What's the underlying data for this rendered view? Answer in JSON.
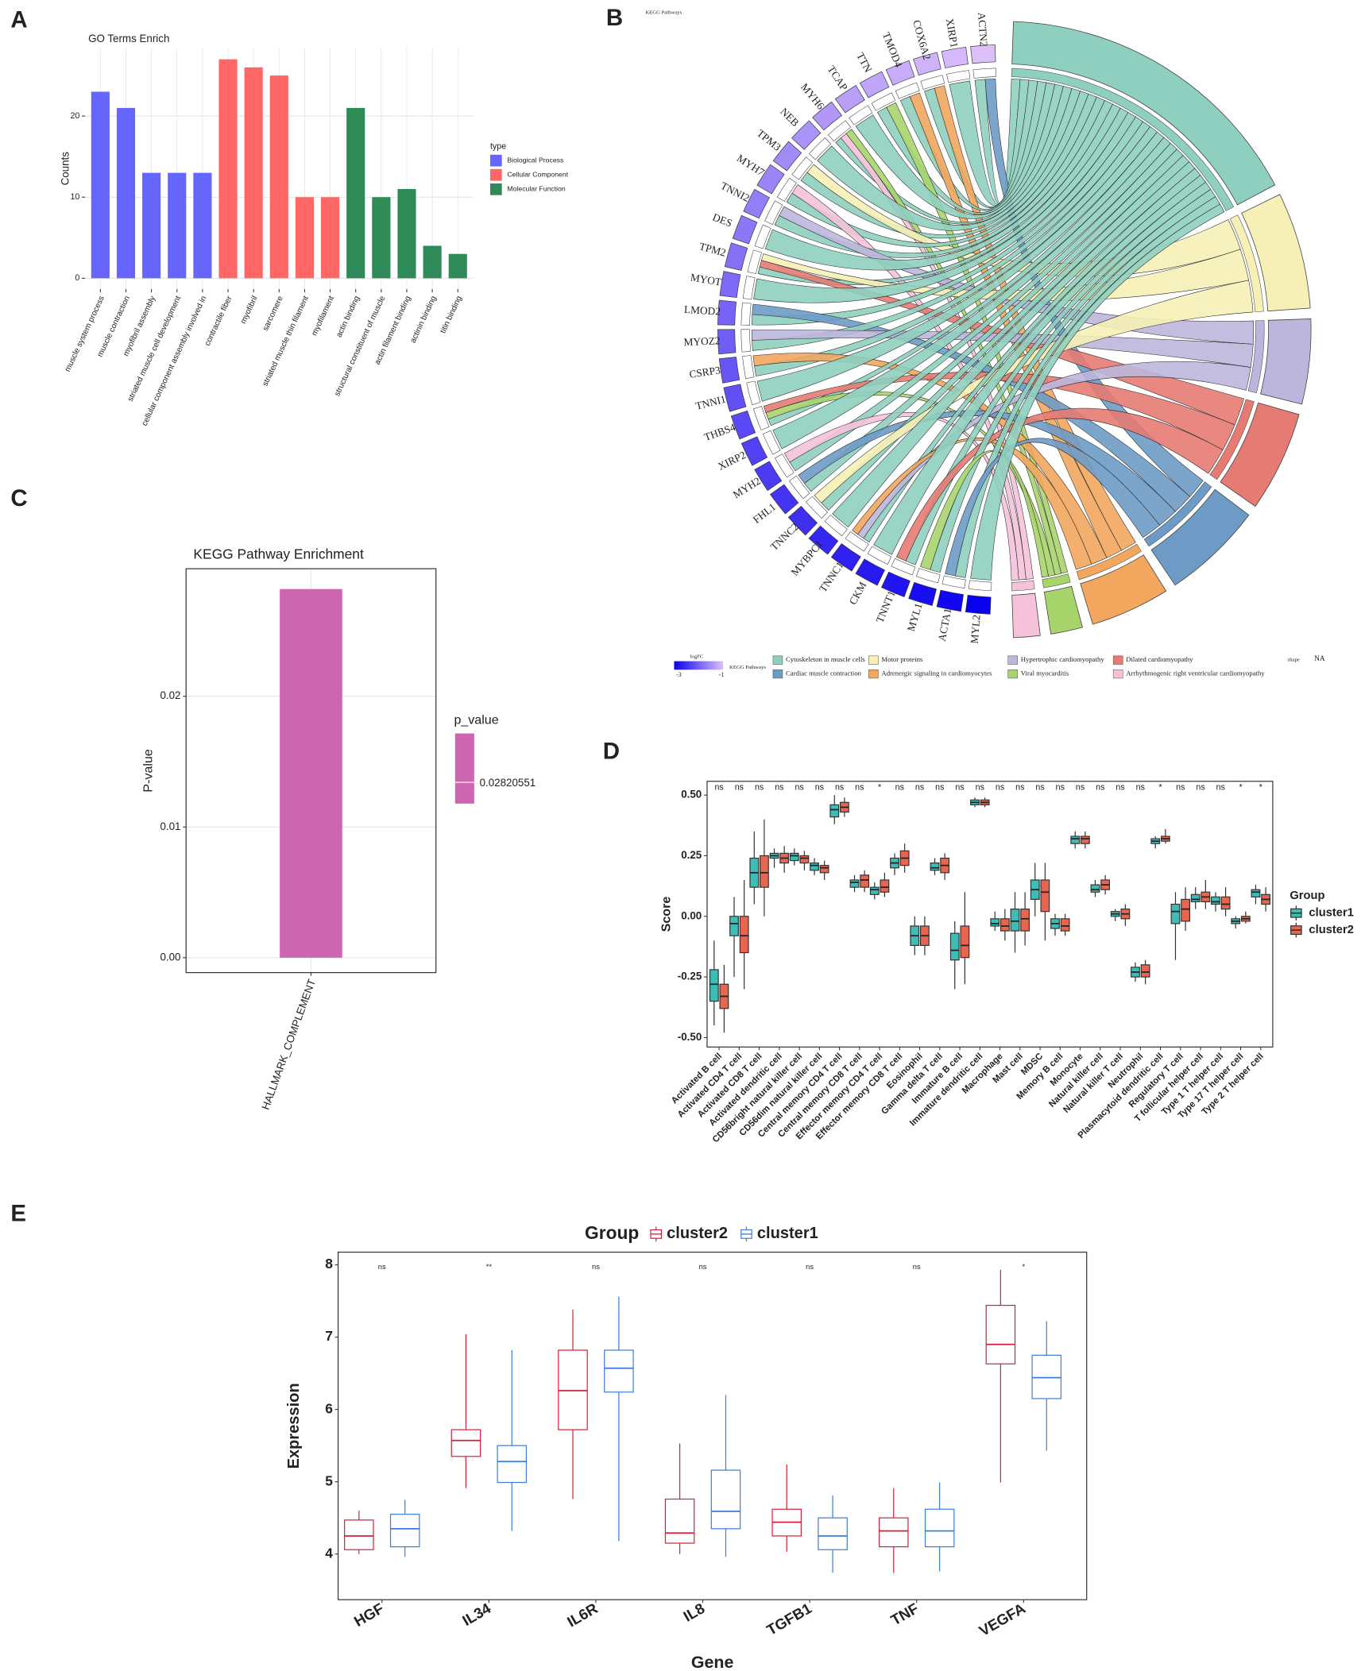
{
  "chart_data": [
    {
      "type": "bar",
      "panel": "A",
      "title": "GO Terms Enrich",
      "ylabel": "Counts",
      "legend_title": "type",
      "categories": [
        "muscle system process",
        "muscle contraction",
        "myofibril assembly",
        "striated muscle cell development",
        "cellular component assembly involved in",
        "contractile fiber",
        "myofibril",
        "sarcomere",
        "striated muscle thin filament",
        "myofilament",
        "actin binding",
        "structural constituent of muscle",
        "actin filament binding",
        "actinin binding",
        "titin binding"
      ],
      "series": [
        {
          "name": "Biological Process",
          "color": "#6666ff",
          "values": [
            23,
            21,
            13,
            13,
            13,
            null,
            null,
            null,
            null,
            null,
            null,
            null,
            null,
            null,
            null
          ]
        },
        {
          "name": "Cellular Component",
          "color": "#ff6666",
          "values": [
            null,
            null,
            null,
            null,
            null,
            27,
            26,
            25,
            10,
            10,
            null,
            null,
            null,
            null,
            null
          ]
        },
        {
          "name": "Molecular Function",
          "color": "#2e8b57",
          "values": [
            null,
            null,
            null,
            null,
            null,
            null,
            null,
            null,
            null,
            null,
            21,
            10,
            11,
            4,
            3
          ]
        }
      ],
      "ylim": [
        -1.35,
        28.4
      ],
      "yticks": [
        0,
        10,
        20
      ],
      "grid": true
    },
    {
      "type": "chord",
      "panel": "B",
      "title": "KEGG Pathways",
      "genes": [
        "ACTN2",
        "XIRP1",
        "COX6A2",
        "TMOD4",
        "TTN",
        "TCAP",
        "MYH6",
        "NEB",
        "TPM3",
        "MYH7",
        "TNNI2",
        "DES",
        "TPM2",
        "MYOT",
        "LMOD2",
        "MYOZ2",
        "CSRP3",
        "TNNI1",
        "THBS4",
        "XIRP2",
        "MYH2",
        "FHL1",
        "TNNC2",
        "MYBPC1",
        "TNNC1",
        "CKM",
        "TNNT1",
        "MYL1",
        "ACTA1",
        "MYL2"
      ],
      "logfc_label": "logFC",
      "logfc_ticks": [
        -3,
        -1
      ],
      "logfc_colors": [
        "#0a00f0",
        "#dcc0fa"
      ],
      "pathways_label": "KEGG Pathways",
      "pathways": [
        {
          "name": "Cytoskeleton in muscle cells",
          "color": "#8fcfbf"
        },
        {
          "name": "Cardiac muscle contraction",
          "color": "#6e9bc6"
        },
        {
          "name": "Motor proteins",
          "color": "#f6f0b6"
        },
        {
          "name": "Adrenergic signaling in cardiomyocytes",
          "color": "#f2a65e"
        },
        {
          "name": "Hypertrophic cardiomyopathy",
          "color": "#bcb6dc"
        },
        {
          "name": "Viral myocarditis",
          "color": "#a8d46c"
        },
        {
          "name": "Dilated cardiomyopathy",
          "color": "#e57b73"
        },
        {
          "name": "Arrhythmogenic right ventricular cardiomyopathy",
          "color": "#f5c2d9"
        }
      ],
      "shape_label": "shape",
      "shape_value": "NA"
    },
    {
      "type": "bar",
      "panel": "C",
      "title": "KEGG Pathway Enrichment",
      "ylabel": "P-value",
      "legend_title": "p_value",
      "categories": [
        "HALLMARK_COMPLEMENT"
      ],
      "values": [
        0.02820551
      ],
      "color": "#cc66b0",
      "ylim": [
        -0.00114,
        0.02976
      ],
      "yticks": [
        {
          "value": 0,
          "label": "0.00"
        },
        0.01,
        0.02
      ],
      "grid": true
    },
    {
      "type": "box",
      "panel": "D",
      "ylabel": "Score",
      "legend_title": "Group",
      "categories": [
        "Activated B cell",
        "Activated CD4 T cell",
        "Activated CD8 T cell",
        "Activated dendritic cell",
        "CD56bright natural killer cell",
        "CD56dim natural killer cell",
        "Central memory CD4 T cell",
        "Central memory CD8 T cell",
        "Effector memory CD4 T cell",
        "Effector memory CD8 T cell",
        "Eosinophil",
        "Gamma delta T cell",
        "Immature  B cell",
        "Immature dendritic cell",
        "Macrophage",
        "Mast cell",
        "MDSC",
        "Memory B cell",
        "Monocyte",
        "Natural killer cell",
        "Natural killer T cell",
        "Neutrophil",
        "Plasmacytoid dendritic cell",
        "Regulatory T cell",
        "T follicular helper cell",
        "Type 1 T helper cell",
        "Type 17 T helper cell",
        "Type 2 T helper cell"
      ],
      "annotations": [
        "ns",
        "ns",
        "ns",
        "ns",
        "ns",
        "ns",
        "ns",
        "ns",
        "*",
        "ns",
        "ns",
        "ns",
        "ns",
        "ns",
        "ns",
        "ns",
        "ns",
        "ns",
        "ns",
        "ns",
        "ns",
        "ns",
        "*",
        "ns",
        "ns",
        "ns",
        "*",
        "*"
      ],
      "series": [
        {
          "name": "cluster1",
          "color": "#3ebdb6",
          "min": [
            -0.45,
            -0.25,
            0.05,
            0.2,
            0.21,
            0.17,
            0.38,
            0.1,
            0.07,
            0.17,
            -0.16,
            0.17,
            -0.3,
            0.45,
            -0.06,
            -0.15,
            0.0,
            -0.08,
            0.28,
            0.08,
            -0.02,
            -0.27,
            0.28,
            -0.18,
            0.03,
            0.02,
            -0.05,
            0.05
          ],
          "q1": [
            -0.35,
            -0.08,
            0.12,
            0.24,
            0.23,
            0.19,
            0.41,
            0.12,
            0.09,
            0.2,
            -0.12,
            0.19,
            -0.18,
            0.46,
            -0.04,
            -0.06,
            0.07,
            -0.05,
            0.3,
            0.1,
            0.0,
            -0.25,
            0.3,
            -0.03,
            0.06,
            0.05,
            -0.03,
            0.08
          ],
          "median": [
            -0.28,
            -0.03,
            0.18,
            0.25,
            0.25,
            0.21,
            0.44,
            0.14,
            0.11,
            0.22,
            -0.08,
            0.2,
            -0.14,
            0.47,
            -0.03,
            -0.02,
            0.11,
            -0.03,
            0.32,
            0.11,
            0.01,
            -0.23,
            0.31,
            0.02,
            0.07,
            0.06,
            -0.02,
            0.1
          ],
          "q3": [
            -0.22,
            0.0,
            0.24,
            0.26,
            0.26,
            0.22,
            0.46,
            0.15,
            0.12,
            0.24,
            -0.04,
            0.22,
            -0.07,
            0.48,
            -0.01,
            0.03,
            0.15,
            -0.01,
            0.33,
            0.13,
            0.02,
            -0.21,
            0.32,
            0.05,
            0.09,
            0.08,
            -0.01,
            0.11
          ],
          "max": [
            -0.1,
            0.08,
            0.35,
            0.28,
            0.28,
            0.24,
            0.5,
            0.17,
            0.14,
            0.26,
            0.0,
            0.24,
            -0.02,
            0.49,
            0.02,
            0.1,
            0.22,
            0.01,
            0.35,
            0.15,
            0.03,
            -0.19,
            0.33,
            0.1,
            0.12,
            0.1,
            0.0,
            0.13
          ]
        },
        {
          "name": "cluster2",
          "color": "#e8664f",
          "min": [
            -0.48,
            -0.3,
            0.0,
            0.18,
            0.19,
            0.15,
            0.41,
            0.1,
            0.08,
            0.18,
            -0.16,
            0.15,
            -0.28,
            0.45,
            -0.1,
            -0.12,
            -0.1,
            -0.08,
            0.28,
            0.09,
            -0.04,
            -0.28,
            0.3,
            -0.06,
            0.03,
            0.0,
            -0.03,
            0.02
          ],
          "q1": [
            -0.38,
            -0.15,
            0.12,
            0.22,
            0.22,
            0.18,
            0.43,
            0.12,
            0.1,
            0.21,
            -0.12,
            0.18,
            -0.17,
            0.46,
            -0.06,
            -0.06,
            0.02,
            -0.06,
            0.3,
            0.11,
            -0.01,
            -0.25,
            0.31,
            -0.02,
            0.06,
            0.03,
            -0.02,
            0.05
          ],
          "median": [
            -0.33,
            -0.08,
            0.18,
            0.24,
            0.24,
            0.2,
            0.45,
            0.15,
            0.12,
            0.24,
            -0.08,
            0.21,
            -0.12,
            0.47,
            -0.04,
            -0.01,
            0.1,
            -0.04,
            0.32,
            0.13,
            0.01,
            -0.23,
            0.32,
            0.03,
            0.08,
            0.05,
            -0.01,
            0.07
          ],
          "q3": [
            -0.28,
            0.0,
            0.25,
            0.26,
            0.25,
            0.21,
            0.47,
            0.17,
            0.15,
            0.27,
            -0.04,
            0.24,
            -0.04,
            0.48,
            -0.01,
            0.03,
            0.15,
            -0.01,
            0.33,
            0.15,
            0.03,
            -0.2,
            0.33,
            0.07,
            0.1,
            0.08,
            0.0,
            0.09
          ],
          "max": [
            -0.2,
            0.15,
            0.4,
            0.29,
            0.27,
            0.23,
            0.49,
            0.19,
            0.18,
            0.3,
            0.0,
            0.26,
            0.1,
            0.49,
            0.03,
            0.1,
            0.22,
            0.01,
            0.35,
            0.17,
            0.05,
            -0.18,
            0.36,
            0.12,
            0.15,
            0.12,
            0.02,
            0.12
          ]
        }
      ],
      "ylim": [
        -0.539,
        0.557
      ],
      "yticks": [
        {
          "value": -0.5,
          "label": "-0.50"
        },
        -0.25,
        {
          "value": 0,
          "label": "0.00"
        },
        0.25,
        {
          "value": 0.5,
          "label": "0.50"
        }
      ]
    },
    {
      "type": "box",
      "panel": "E",
      "xlabel": "Gene",
      "ylabel": "Expression",
      "legend_title": "Group",
      "categories": [
        "HGF",
        "IL34",
        "IL6R",
        "IL8",
        "TGFB1",
        "TNF",
        "VEGFA"
      ],
      "annotations": [
        "ns",
        "**",
        "ns",
        "ns",
        "ns",
        "ns",
        "*"
      ],
      "series": [
        {
          "name": "cluster2",
          "color": "#d6203a",
          "min": [
            4.0,
            4.91,
            4.76,
            4.0,
            4.03,
            3.74,
            4.99
          ],
          "q1": [
            4.06,
            5.35,
            5.72,
            4.15,
            4.25,
            4.1,
            6.63
          ],
          "median": [
            4.25,
            5.57,
            6.26,
            4.29,
            4.44,
            4.32,
            6.9
          ],
          "q3": [
            4.47,
            5.72,
            6.82,
            4.76,
            4.62,
            4.5,
            7.44
          ],
          "max": [
            4.6,
            7.04,
            7.38,
            5.53,
            5.24,
            4.91,
            7.93
          ]
        },
        {
          "name": "cluster1",
          "color": "#3b7dd8",
          "min": [
            3.96,
            4.32,
            4.18,
            3.96,
            3.74,
            3.76,
            5.43
          ],
          "q1": [
            4.1,
            4.99,
            6.24,
            4.35,
            4.06,
            4.1,
            6.15
          ],
          "median": [
            4.35,
            5.28,
            6.57,
            4.59,
            4.25,
            4.32,
            6.44
          ],
          "q3": [
            4.55,
            5.5,
            6.82,
            5.16,
            4.5,
            4.62,
            6.75
          ],
          "max": [
            4.75,
            6.82,
            7.56,
            6.2,
            4.81,
            4.99,
            7.22
          ]
        }
      ],
      "ylim": [
        3.368,
        8.176
      ],
      "yticks": [
        4,
        5,
        6,
        7,
        8
      ]
    }
  ]
}
